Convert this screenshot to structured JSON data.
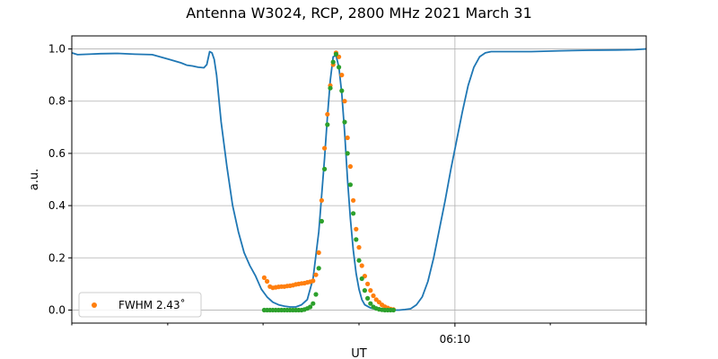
{
  "chart_data": {
    "type": "line",
    "title": "Antenna W3024, RCP, 2800 MHz 2021 March 31",
    "xlabel": "UT",
    "ylabel": "a.u.",
    "xlim": [
      0,
      100
    ],
    "ylim": [
      -0.05,
      1.05
    ],
    "yticks": [
      0.0,
      0.2,
      0.4,
      0.6,
      0.8,
      1.0
    ],
    "ytick_labels": [
      "0.0",
      "0.2",
      "0.4",
      "0.6",
      "0.8",
      "1.0"
    ],
    "xticks": [
      66.7
    ],
    "xtick_labels": [
      "06:10"
    ],
    "x_minor_ticks": [
      0,
      16.7,
      33.3,
      50,
      83.3,
      100
    ],
    "grid": true,
    "legend_position": "lower-left",
    "legend": [
      {
        "label": "FWHM 2.43˚",
        "series": "orange_points"
      }
    ],
    "colors": {
      "line": "#1f77b4",
      "orange": "#ff7f0e",
      "green": "#2ca02c",
      "grid": "#b0b0b0"
    },
    "series": [
      {
        "kind": "line",
        "color": "#1f77b4",
        "x": [
          0,
          1,
          3,
          5,
          8,
          11,
          14,
          17,
          19,
          20,
          21,
          22,
          23,
          23.5,
          24,
          24.4,
          24.8,
          25.2,
          26,
          27,
          28,
          29,
          30,
          31,
          32,
          33,
          34,
          35,
          36,
          37,
          38,
          39,
          40,
          41,
          42,
          43,
          44,
          44.5,
          45,
          45.5,
          46,
          46.5,
          47,
          47.5,
          48,
          48.5,
          49,
          49.5,
          50,
          50.5,
          51,
          52,
          53,
          54,
          55,
          56,
          57,
          58,
          59,
          60,
          61,
          62,
          63,
          64,
          65,
          66,
          67,
          68,
          69,
          70,
          71,
          72,
          73,
          75,
          80,
          85,
          90,
          95,
          98,
          100
        ],
        "y": [
          0.985,
          0.978,
          0.98,
          0.982,
          0.983,
          0.98,
          0.978,
          0.96,
          0.947,
          0.938,
          0.935,
          0.93,
          0.928,
          0.94,
          0.99,
          0.985,
          0.96,
          0.9,
          0.72,
          0.55,
          0.4,
          0.3,
          0.22,
          0.17,
          0.13,
          0.08,
          0.05,
          0.03,
          0.02,
          0.015,
          0.012,
          0.012,
          0.02,
          0.04,
          0.12,
          0.3,
          0.58,
          0.74,
          0.88,
          0.97,
          0.975,
          0.93,
          0.83,
          0.68,
          0.5,
          0.35,
          0.23,
          0.14,
          0.08,
          0.04,
          0.02,
          0.008,
          0.003,
          0.001,
          0.0,
          0.0,
          0.0,
          0.002,
          0.005,
          0.02,
          0.05,
          0.11,
          0.2,
          0.31,
          0.42,
          0.54,
          0.65,
          0.76,
          0.86,
          0.93,
          0.97,
          0.985,
          0.99,
          0.99,
          0.99,
          0.993,
          0.995,
          0.996,
          0.997,
          1.0
        ]
      },
      {
        "kind": "scatter",
        "name": "orange_points",
        "color": "#ff7f0e",
        "x": [
          33.5,
          34.0,
          34.5,
          35.0,
          35.5,
          36.0,
          36.5,
          37.0,
          37.5,
          38.0,
          38.5,
          39.0,
          39.5,
          40.0,
          40.5,
          41.0,
          41.5,
          42.0,
          42.5,
          43.0,
          43.5,
          44.0,
          44.5,
          45.0,
          45.5,
          46.0,
          46.5,
          47.0,
          47.5,
          48.0,
          48.5,
          49.0,
          49.5,
          50.0,
          50.5,
          51.0,
          51.5,
          52.0,
          52.5,
          53.0,
          53.5,
          54.0,
          54.5,
          55.0,
          55.5,
          56.0
        ],
        "y": [
          0.124,
          0.11,
          0.09,
          0.085,
          0.087,
          0.089,
          0.09,
          0.09,
          0.092,
          0.093,
          0.095,
          0.098,
          0.1,
          0.102,
          0.103,
          0.106,
          0.108,
          0.112,
          0.135,
          0.22,
          0.42,
          0.62,
          0.75,
          0.86,
          0.94,
          0.985,
          0.97,
          0.9,
          0.8,
          0.66,
          0.55,
          0.42,
          0.31,
          0.24,
          0.17,
          0.13,
          0.1,
          0.075,
          0.055,
          0.04,
          0.03,
          0.02,
          0.013,
          0.008,
          0.004,
          0.002
        ]
      },
      {
        "kind": "scatter",
        "color": "#2ca02c",
        "x": [
          33.5,
          34.0,
          34.5,
          35.0,
          35.5,
          36.0,
          36.5,
          37.0,
          37.5,
          38.0,
          38.5,
          39.0,
          39.5,
          40.0,
          40.5,
          41.0,
          41.5,
          42.0,
          42.5,
          43.0,
          43.5,
          44.0,
          44.5,
          45.0,
          45.5,
          46.0,
          46.5,
          47.0,
          47.5,
          48.0,
          48.5,
          49.0,
          49.5,
          50.0,
          50.5,
          51.0,
          51.5,
          52.0,
          52.5,
          53.0,
          53.5,
          54.0,
          54.5,
          55.0,
          55.5,
          56.0
        ],
        "y": [
          0.0,
          0.0,
          0.0,
          0.0,
          0.0,
          0.0,
          0.0,
          0.0,
          0.0,
          0.0,
          0.0,
          0.0,
          0.0,
          0.0,
          0.002,
          0.006,
          0.012,
          0.025,
          0.06,
          0.16,
          0.34,
          0.54,
          0.71,
          0.85,
          0.95,
          0.98,
          0.93,
          0.84,
          0.72,
          0.6,
          0.48,
          0.37,
          0.27,
          0.19,
          0.12,
          0.075,
          0.045,
          0.025,
          0.012,
          0.006,
          0.003,
          0.001,
          0.0,
          0.0,
          0.0,
          0.0
        ]
      }
    ]
  }
}
